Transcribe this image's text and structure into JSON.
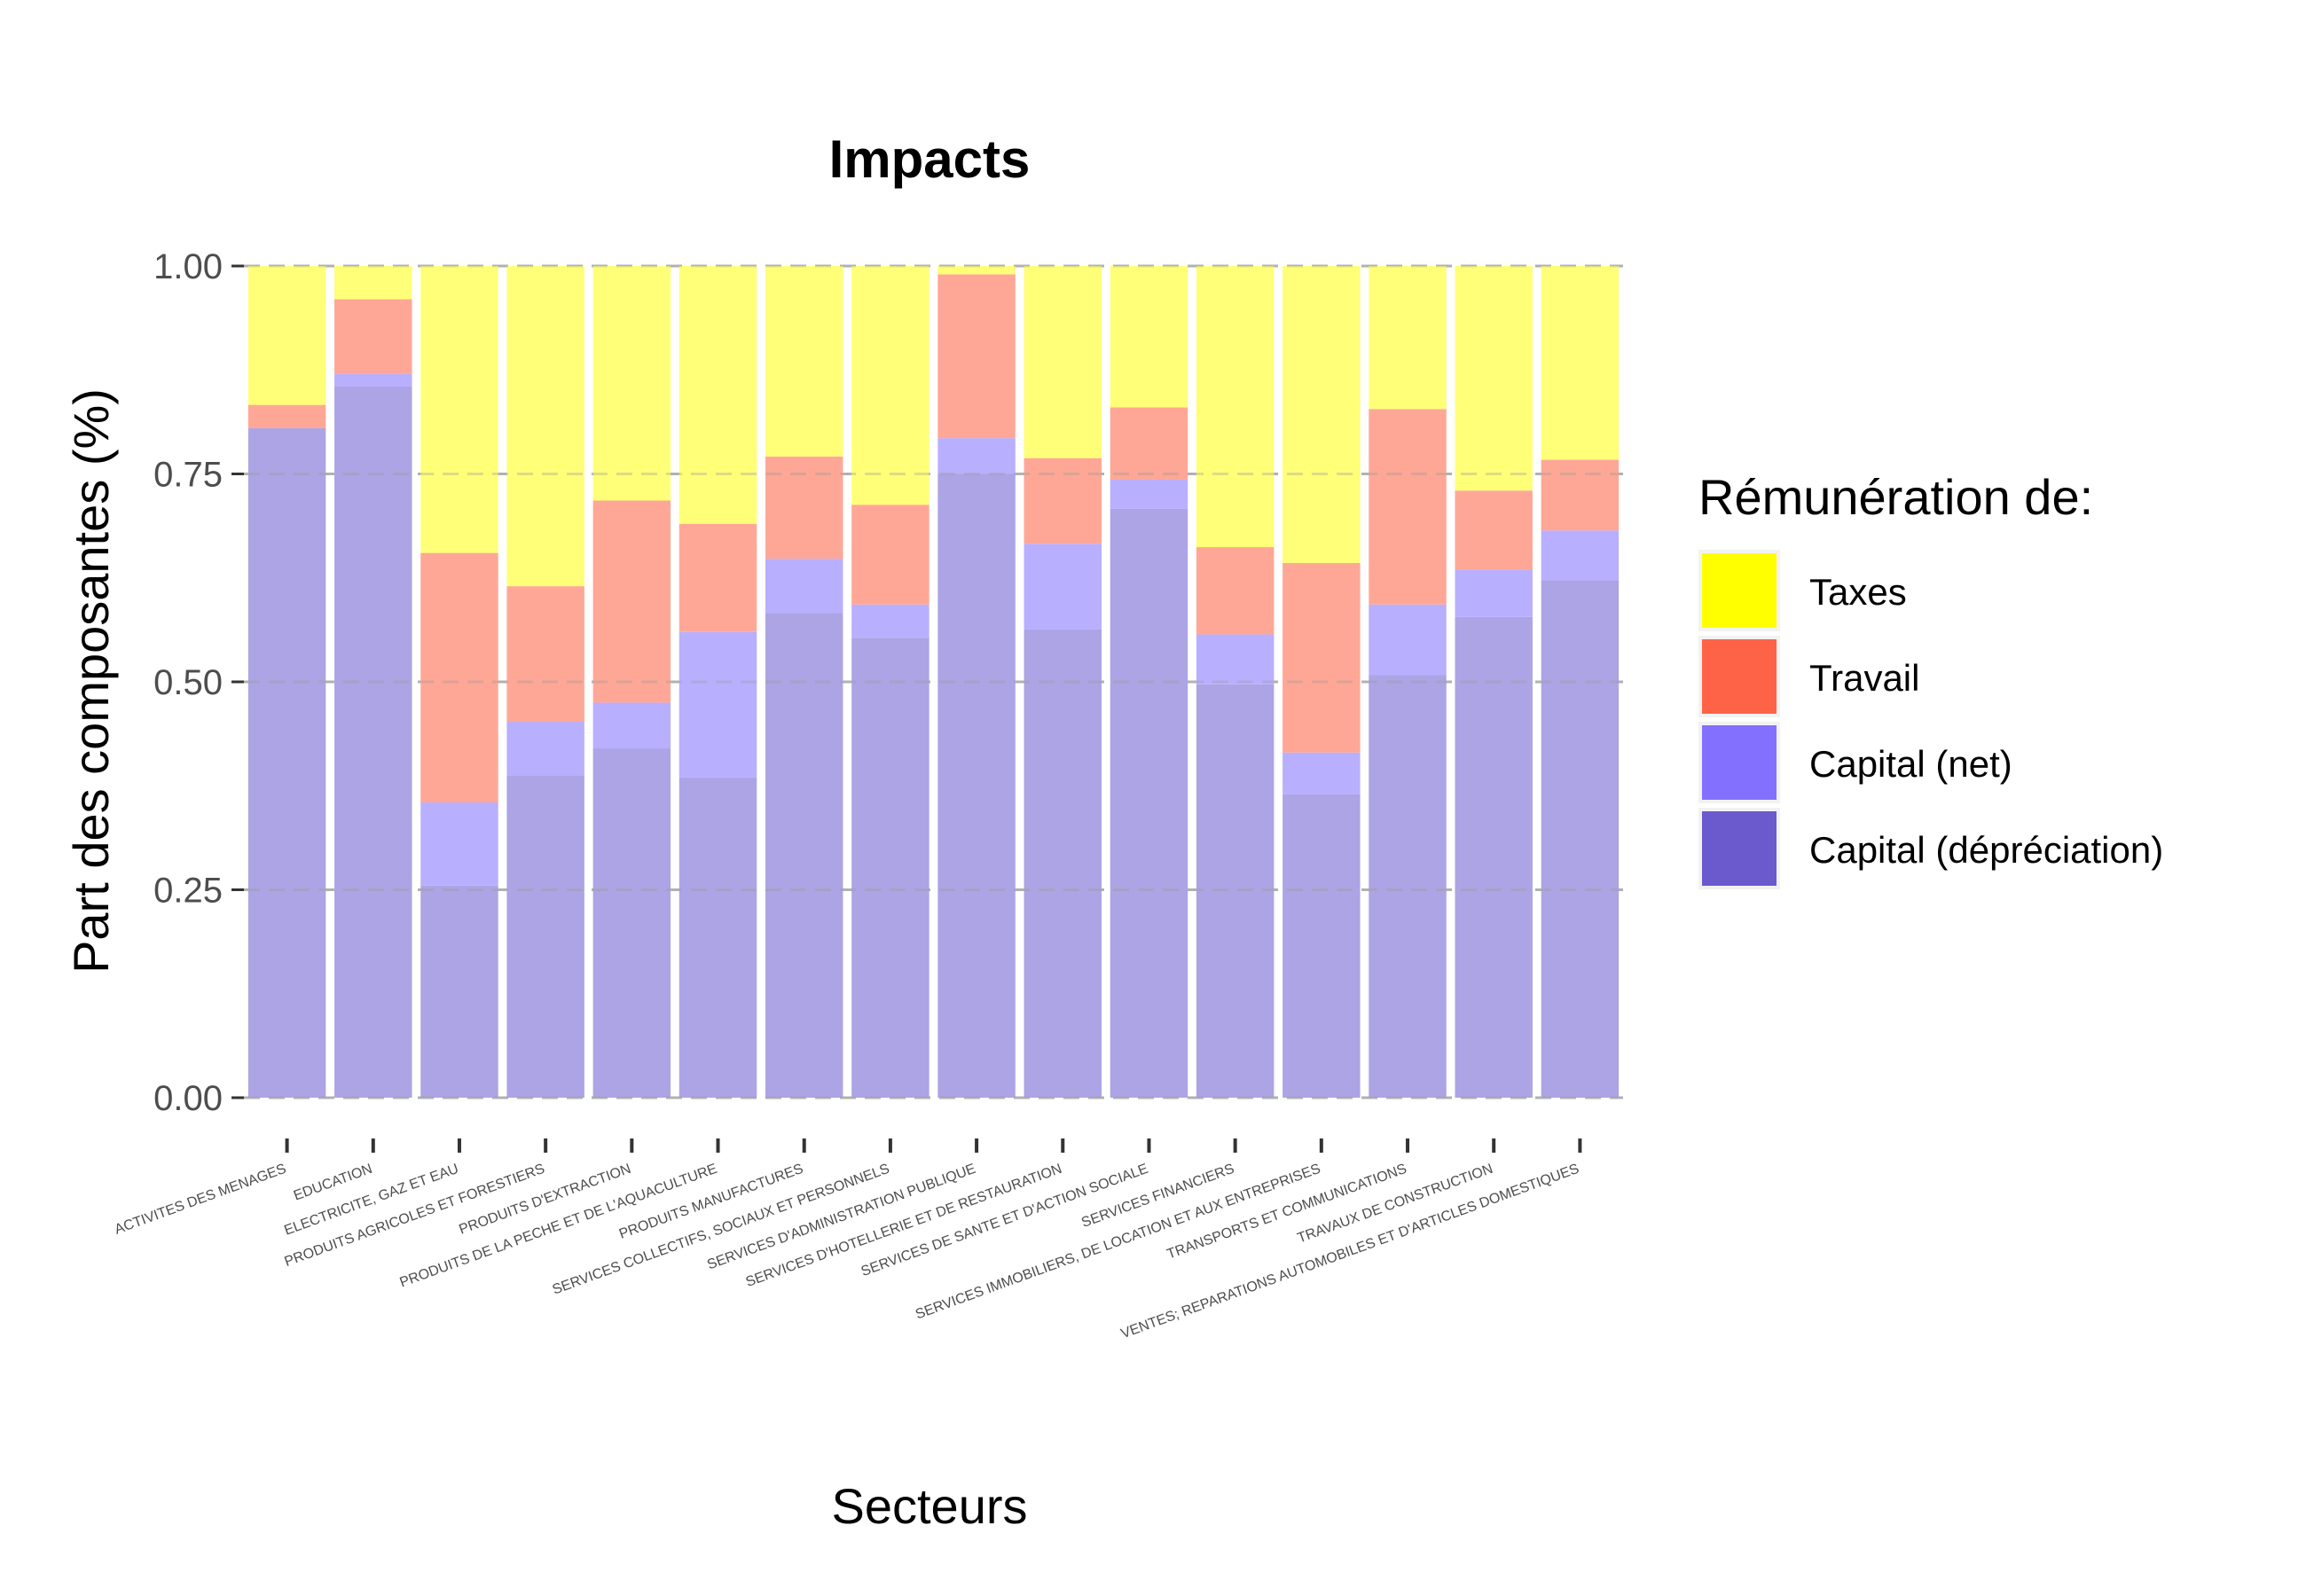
{
  "chart_data": {
    "type": "bar",
    "stacked": true,
    "title": "Impacts",
    "xlabel": "Secteurs",
    "ylabel": "Part des composantes (%)",
    "ylim": [
      0,
      1
    ],
    "yticks": [
      "0.00",
      "0.25",
      "0.50",
      "0.75",
      "1.00"
    ],
    "grid": "horizontal dashed",
    "legend_position": "right",
    "legend_title": "Rémunération de:",
    "categories": [
      "ACTIVITES DES MENAGES",
      "EDUCATION",
      "ELECTRICITE, GAZ ET EAU",
      "PRODUITS AGRICOLES ET FORESTIERS",
      "PRODUITS D'EXTRACTION",
      "PRODUITS DE LA PECHE ET DE L'AQUACULTURE",
      "PRODUITS MANUFACTURES",
      "SERVICES COLLECTIFS, SOCIAUX ET PERSONNELS",
      "SERVICES D'ADMINISTRATION PUBLIQUE",
      "SERVICES D'HOTELLERIE ET DE RESTAURATION",
      "SERVICES DE SANTE ET D'ACTION SOCIALE",
      "SERVICES FINANCIERS",
      "SERVICES IMMOBILIERS, DE LOCATION ET AUX ENTREPRISES",
      "TRANSPORTS ET COMMUNICATIONS",
      "TRAVAUX DE CONSTRUCTION",
      "VENTES; REPARATIONS AUTOMOBILES ET D'ARTICLES DOMESTIQUES"
    ],
    "series": [
      {
        "name": "Capital (dépréciation)",
        "legend_color": "#6a5acd",
        "bar_color": "#aca4e4",
        "values": [
          0.805,
          0.855,
          0.255,
          0.387,
          0.42,
          0.385,
          0.583,
          0.553,
          0.75,
          0.563,
          0.708,
          0.497,
          0.365,
          0.508,
          0.578,
          0.622
        ]
      },
      {
        "name": "Capital (net)",
        "legend_color": "#8470ff",
        "bar_color": "#b8afff",
        "values": [
          0.0,
          0.015,
          0.1,
          0.065,
          0.055,
          0.175,
          0.065,
          0.04,
          0.043,
          0.103,
          0.035,
          0.06,
          0.05,
          0.085,
          0.057,
          0.06
        ]
      },
      {
        "name": "Travail",
        "legend_color": "#ff6347",
        "bar_color": "#ffa796",
        "values": [
          0.028,
          0.09,
          0.3,
          0.163,
          0.243,
          0.13,
          0.123,
          0.12,
          0.197,
          0.103,
          0.087,
          0.105,
          0.228,
          0.235,
          0.095,
          0.085
        ]
      },
      {
        "name": "Taxes",
        "legend_color": "#ffff00",
        "bar_color": "#ffff78",
        "values": [
          0.167,
          0.04,
          0.345,
          0.385,
          0.282,
          0.31,
          0.229,
          0.287,
          0.01,
          0.231,
          0.17,
          0.338,
          0.357,
          0.172,
          0.27,
          0.233
        ]
      }
    ],
    "legend_order": [
      "Taxes",
      "Travail",
      "Capital (net)",
      "Capital (dépréciation)"
    ]
  }
}
